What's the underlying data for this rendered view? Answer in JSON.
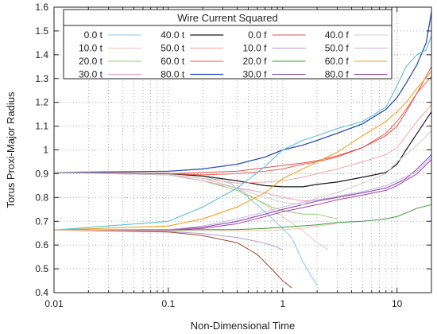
{
  "chart_data": {
    "type": "line",
    "xlabel": "Non-Dimensional Time",
    "ylabel": "Torus Proxi-Major Radius",
    "xscale": "log",
    "xlim": [
      0.01,
      20
    ],
    "ylim": [
      0.4,
      1.6
    ],
    "x_ticks": [
      {
        "value": 0.01,
        "label": "0.01"
      },
      {
        "value": 0.1,
        "label": "0.1"
      },
      {
        "value": 1,
        "label": "1"
      },
      {
        "value": 10,
        "label": "10"
      }
    ],
    "y_ticks": [
      {
        "value": 0.4,
        "label": "0.4"
      },
      {
        "value": 0.5,
        "label": "0.5"
      },
      {
        "value": 0.6,
        "label": "0.6"
      },
      {
        "value": 0.7,
        "label": "0.7"
      },
      {
        "value": 0.8,
        "label": "0.8"
      },
      {
        "value": 0.9,
        "label": "0.9"
      },
      {
        "value": 1.0,
        "label": "1"
      },
      {
        "value": 1.1,
        "label": "1.1"
      },
      {
        "value": 1.2,
        "label": "1.2"
      },
      {
        "value": 1.3,
        "label": "1.3"
      },
      {
        "value": 1.4,
        "label": "1.4"
      },
      {
        "value": 1.5,
        "label": "1.5"
      },
      {
        "value": 1.6,
        "label": "1.6"
      }
    ],
    "grid": {
      "x": "dotted-major-minor",
      "y": "dotted"
    },
    "legend": {
      "title": "Wire Current Squared",
      "position": "top-left",
      "columns": 4
    },
    "series": [
      {
        "name": "0.0 t",
        "color": "#8ec3e8",
        "width": 1,
        "points": [
          [
            0.01,
            0.905
          ],
          [
            0.1,
            0.9
          ],
          [
            0.2,
            0.89
          ],
          [
            0.35,
            0.86
          ],
          [
            0.5,
            0.8
          ],
          [
            0.7,
            0.74
          ],
          [
            1.0,
            0.67
          ],
          [
            1.2,
            0.63
          ],
          [
            1.5,
            0.53
          ],
          [
            2.0,
            0.43
          ]
        ]
      },
      {
        "name": "10.0 t",
        "color": "#f0c0c0",
        "width": 1,
        "points": [
          [
            0.01,
            0.905
          ],
          [
            0.1,
            0.895
          ],
          [
            0.2,
            0.88
          ],
          [
            0.4,
            0.84
          ],
          [
            0.6,
            0.79
          ],
          [
            1.0,
            0.72
          ],
          [
            1.5,
            0.66
          ],
          [
            2.0,
            0.61
          ],
          [
            2.5,
            0.58
          ]
        ]
      },
      {
        "name": "20.0 t",
        "color": "#8fcf6f",
        "width": 1,
        "points": [
          [
            0.01,
            0.905
          ],
          [
            0.1,
            0.895
          ],
          [
            0.2,
            0.87
          ],
          [
            0.4,
            0.83
          ],
          [
            0.6,
            0.79
          ],
          [
            0.8,
            0.76
          ],
          [
            1.0,
            0.745
          ],
          [
            1.5,
            0.73
          ],
          [
            2.0,
            0.73
          ],
          [
            3.0,
            0.71
          ]
        ]
      },
      {
        "name": "30.0 t",
        "color": "#e8a3c3",
        "width": 1,
        "points": [
          [
            0.01,
            0.905
          ],
          [
            0.1,
            0.895
          ],
          [
            0.2,
            0.87
          ],
          [
            0.4,
            0.84
          ],
          [
            0.7,
            0.82
          ],
          [
            1.0,
            0.8
          ],
          [
            1.5,
            0.785
          ],
          [
            2.0,
            0.79
          ],
          [
            3.0,
            0.8
          ],
          [
            4.0,
            0.815
          ]
        ]
      },
      {
        "name": "40.0 t",
        "color": "#1a1a1a",
        "width": 1.2,
        "points": [
          [
            0.01,
            0.905
          ],
          [
            0.1,
            0.9
          ],
          [
            0.2,
            0.89
          ],
          [
            0.4,
            0.87
          ],
          [
            0.7,
            0.85
          ],
          [
            1.0,
            0.845
          ],
          [
            1.5,
            0.845
          ],
          [
            2.0,
            0.855
          ],
          [
            3.0,
            0.865
          ],
          [
            5.0,
            0.885
          ],
          [
            8.0,
            0.905
          ],
          [
            10.0,
            0.94
          ],
          [
            12.0,
            1.0
          ],
          [
            15.0,
            1.07
          ],
          [
            20.0,
            1.16
          ]
        ]
      },
      {
        "name": "50.0 t",
        "color": "#f5a5a5",
        "width": 1,
        "points": [
          [
            0.01,
            0.905
          ],
          [
            0.1,
            0.895
          ],
          [
            0.2,
            0.88
          ],
          [
            0.4,
            0.86
          ],
          [
            0.7,
            0.865
          ],
          [
            1.0,
            0.87
          ],
          [
            1.5,
            0.885
          ],
          [
            2.0,
            0.9
          ],
          [
            3.0,
            0.92
          ],
          [
            5.0,
            0.95
          ],
          [
            8.0,
            0.98
          ],
          [
            10.0,
            1.01
          ],
          [
            12.0,
            1.06
          ],
          [
            15.0,
            1.12
          ],
          [
            20.0,
            1.19
          ]
        ]
      },
      {
        "name": "60.0 t",
        "color": "#f06050",
        "width": 1,
        "points": [
          [
            0.01,
            0.905
          ],
          [
            0.1,
            0.9
          ],
          [
            0.2,
            0.895
          ],
          [
            0.4,
            0.9
          ],
          [
            0.7,
            0.91
          ],
          [
            1.0,
            0.92
          ],
          [
            1.5,
            0.94
          ],
          [
            2.0,
            0.95
          ],
          [
            3.0,
            0.97
          ],
          [
            5.0,
            1.01
          ],
          [
            8.0,
            1.07
          ],
          [
            10.0,
            1.12
          ],
          [
            12.0,
            1.17
          ],
          [
            15.0,
            1.24
          ],
          [
            20.0,
            1.31
          ]
        ]
      },
      {
        "name": "80.0 t",
        "color": "#2c4fb0",
        "width": 1.3,
        "points": [
          [
            0.01,
            0.905
          ],
          [
            0.1,
            0.91
          ],
          [
            0.2,
            0.92
          ],
          [
            0.4,
            0.94
          ],
          [
            0.7,
            0.97
          ],
          [
            1.0,
            1.0
          ],
          [
            1.5,
            1.02
          ],
          [
            2.0,
            1.04
          ],
          [
            3.0,
            1.07
          ],
          [
            5.0,
            1.11
          ],
          [
            8.0,
            1.17
          ],
          [
            10.0,
            1.22
          ],
          [
            12.0,
            1.28
          ],
          [
            15.0,
            1.36
          ],
          [
            18.0,
            1.45
          ],
          [
            20.0,
            1.58
          ]
        ]
      },
      {
        "name": "0.0 f",
        "color": "#e05050",
        "width": 1,
        "points": [
          [
            0.01,
            0.905
          ],
          [
            0.1,
            0.9
          ],
          [
            0.2,
            0.905
          ],
          [
            0.4,
            0.91
          ],
          [
            0.7,
            0.925
          ],
          [
            1.0,
            0.935
          ],
          [
            1.5,
            0.945
          ],
          [
            2.0,
            0.955
          ],
          [
            3.0,
            0.975
          ],
          [
            5.0,
            1.01
          ],
          [
            8.0,
            1.06
          ],
          [
            10.0,
            1.1
          ],
          [
            12.0,
            1.16
          ],
          [
            15.0,
            1.24
          ],
          [
            20.0,
            1.35
          ]
        ]
      },
      {
        "name": "10.0 f",
        "color": "#b39ad8",
        "width": 1,
        "points": [
          [
            0.01,
            0.663
          ],
          [
            0.1,
            0.657
          ],
          [
            0.2,
            0.648
          ],
          [
            0.4,
            0.632
          ],
          [
            0.6,
            0.615
          ],
          [
            0.8,
            0.6
          ],
          [
            1.0,
            0.58
          ]
        ]
      },
      {
        "name": "20.0 f",
        "color": "#3a9a3a",
        "width": 1,
        "points": [
          [
            0.01,
            0.663
          ],
          [
            0.1,
            0.663
          ],
          [
            0.2,
            0.665
          ],
          [
            0.4,
            0.665
          ],
          [
            0.7,
            0.67
          ],
          [
            1.0,
            0.675
          ],
          [
            2.0,
            0.685
          ],
          [
            3.0,
            0.695
          ],
          [
            5.0,
            0.7
          ],
          [
            8.0,
            0.71
          ],
          [
            10.0,
            0.72
          ],
          [
            12.0,
            0.735
          ],
          [
            15.0,
            0.755
          ],
          [
            20.0,
            0.77
          ]
        ]
      },
      {
        "name": "30.0 f",
        "color": "#8a4fb0",
        "width": 1.1,
        "points": [
          [
            0.01,
            0.663
          ],
          [
            0.1,
            0.665
          ],
          [
            0.2,
            0.675
          ],
          [
            0.4,
            0.7
          ],
          [
            0.7,
            0.73
          ],
          [
            1.0,
            0.75
          ],
          [
            1.5,
            0.77
          ],
          [
            2.0,
            0.785
          ],
          [
            3.0,
            0.8
          ],
          [
            5.0,
            0.82
          ],
          [
            8.0,
            0.84
          ],
          [
            10.0,
            0.86
          ],
          [
            12.0,
            0.88
          ],
          [
            15.0,
            0.92
          ],
          [
            20.0,
            0.98
          ]
        ]
      },
      {
        "name": "40.0 f",
        "color": "#cfcfcf",
        "width": 1,
        "points": [
          [
            0.01,
            0.905
          ],
          [
            0.1,
            0.895
          ],
          [
            0.2,
            0.88
          ],
          [
            0.4,
            0.84
          ],
          [
            0.7,
            0.8
          ],
          [
            1.0,
            0.78
          ],
          [
            1.5,
            0.77
          ],
          [
            2.0,
            0.8
          ],
          [
            3.0,
            0.82
          ],
          [
            5.0,
            0.86
          ],
          [
            8.0,
            0.9
          ],
          [
            10.0,
            0.95
          ],
          [
            15.0,
            1.02
          ],
          [
            20.0,
            1.08
          ]
        ]
      },
      {
        "name": "50.0 f",
        "color": "#c9b3e6",
        "width": 1,
        "points": [
          [
            0.01,
            0.663
          ],
          [
            0.1,
            0.665
          ],
          [
            0.2,
            0.68
          ],
          [
            0.4,
            0.71
          ],
          [
            0.7,
            0.74
          ],
          [
            1.0,
            0.76
          ],
          [
            1.5,
            0.78
          ],
          [
            2.0,
            0.79
          ],
          [
            3.0,
            0.805
          ],
          [
            5.0,
            0.825
          ],
          [
            8.0,
            0.85
          ],
          [
            10.0,
            0.87
          ],
          [
            15.0,
            0.91
          ],
          [
            20.0,
            0.97
          ]
        ]
      },
      {
        "name": "60.0 f",
        "color": "#f2a41f",
        "width": 1.1,
        "points": [
          [
            0.01,
            0.663
          ],
          [
            0.1,
            0.68
          ],
          [
            0.2,
            0.71
          ],
          [
            0.4,
            0.76
          ],
          [
            0.7,
            0.82
          ],
          [
            1.0,
            0.88
          ],
          [
            1.5,
            0.92
          ],
          [
            2.0,
            0.95
          ],
          [
            3.0,
            0.99
          ],
          [
            5.0,
            1.06
          ],
          [
            8.0,
            1.12
          ],
          [
            10.0,
            1.16
          ],
          [
            12.0,
            1.2
          ],
          [
            15.0,
            1.26
          ],
          [
            20.0,
            1.33
          ]
        ]
      },
      {
        "name": "80.0 f",
        "color": "#a040a0",
        "width": 1,
        "points": [
          [
            0.01,
            0.663
          ],
          [
            0.1,
            0.663
          ],
          [
            0.2,
            0.67
          ],
          [
            0.4,
            0.69
          ],
          [
            0.7,
            0.72
          ],
          [
            1.0,
            0.74
          ],
          [
            2.0,
            0.77
          ],
          [
            3.0,
            0.79
          ],
          [
            5.0,
            0.81
          ],
          [
            8.0,
            0.83
          ],
          [
            10.0,
            0.85
          ],
          [
            15.0,
            0.9
          ],
          [
            20.0,
            0.96
          ]
        ]
      },
      {
        "name": "",
        "color": "#5cc0d0",
        "width": 1.1,
        "points": [
          [
            0.01,
            0.663
          ],
          [
            0.1,
            0.7
          ],
          [
            0.2,
            0.76
          ],
          [
            0.4,
            0.84
          ],
          [
            0.7,
            0.93
          ],
          [
            1.0,
            1.0
          ],
          [
            1.5,
            1.04
          ],
          [
            2.0,
            1.06
          ],
          [
            3.0,
            1.09
          ],
          [
            5.0,
            1.12
          ],
          [
            8.0,
            1.18
          ],
          [
            10.0,
            1.27
          ],
          [
            12.0,
            1.35
          ],
          [
            15.0,
            1.4
          ],
          [
            18.0,
            1.42
          ],
          [
            20.0,
            1.48
          ]
        ]
      },
      {
        "name": "",
        "color": "#9a4a2a",
        "width": 1,
        "points": [
          [
            0.01,
            0.663
          ],
          [
            0.1,
            0.655
          ],
          [
            0.2,
            0.64
          ],
          [
            0.4,
            0.61
          ],
          [
            0.6,
            0.56
          ],
          [
            0.8,
            0.5
          ],
          [
            1.0,
            0.45
          ],
          [
            1.2,
            0.42
          ]
        ]
      },
      {
        "name": "",
        "color": "#f2c8a8",
        "width": 1,
        "points": [
          [
            0.01,
            0.663
          ],
          [
            0.1,
            0.66
          ],
          [
            0.2,
            0.66
          ],
          [
            0.4,
            0.66
          ],
          [
            0.7,
            0.66
          ],
          [
            1.0,
            0.665
          ],
          [
            1.5,
            0.67
          ],
          [
            2.0,
            0.68
          ],
          [
            3.0,
            0.69
          ]
        ]
      }
    ]
  }
}
